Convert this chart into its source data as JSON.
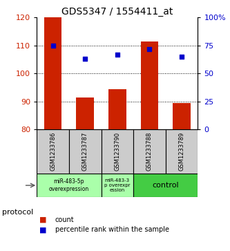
{
  "title": "GDS5347 / 1554411_at",
  "samples": [
    "GSM1233786",
    "GSM1233787",
    "GSM1233790",
    "GSM1233788",
    "GSM1233789"
  ],
  "bar_values": [
    120,
    91.5,
    94.5,
    111.5,
    89.5
  ],
  "scatter_values": [
    75,
    63,
    67,
    72,
    65
  ],
  "bar_bottom": 80,
  "ylim_left": [
    80,
    120
  ],
  "ylim_right": [
    0,
    100
  ],
  "yticks_left": [
    80,
    90,
    100,
    110,
    120
  ],
  "yticks_right": [
    0,
    25,
    50,
    75,
    100
  ],
  "bar_color": "#CC2200",
  "scatter_color": "#0000CC",
  "grid_color": "#000000",
  "protocol_groups": [
    {
      "label": "miR-483-5p\noverexpression",
      "start": 0,
      "end": 2,
      "color": "#AAFFAA"
    },
    {
      "label": "miR-483-3\np overexpr\nession",
      "start": 2,
      "end": 3,
      "color": "#AAFFAA"
    },
    {
      "label": "control",
      "start": 3,
      "end": 5,
      "color": "#44CC44"
    }
  ],
  "legend_count_label": "count",
  "legend_percentile_label": "percentile rank within the sample",
  "protocol_label": "protocol",
  "background_color": "#ffffff",
  "sample_box_color": "#CCCCCC",
  "title_fontsize": 10,
  "tick_fontsize": 8
}
